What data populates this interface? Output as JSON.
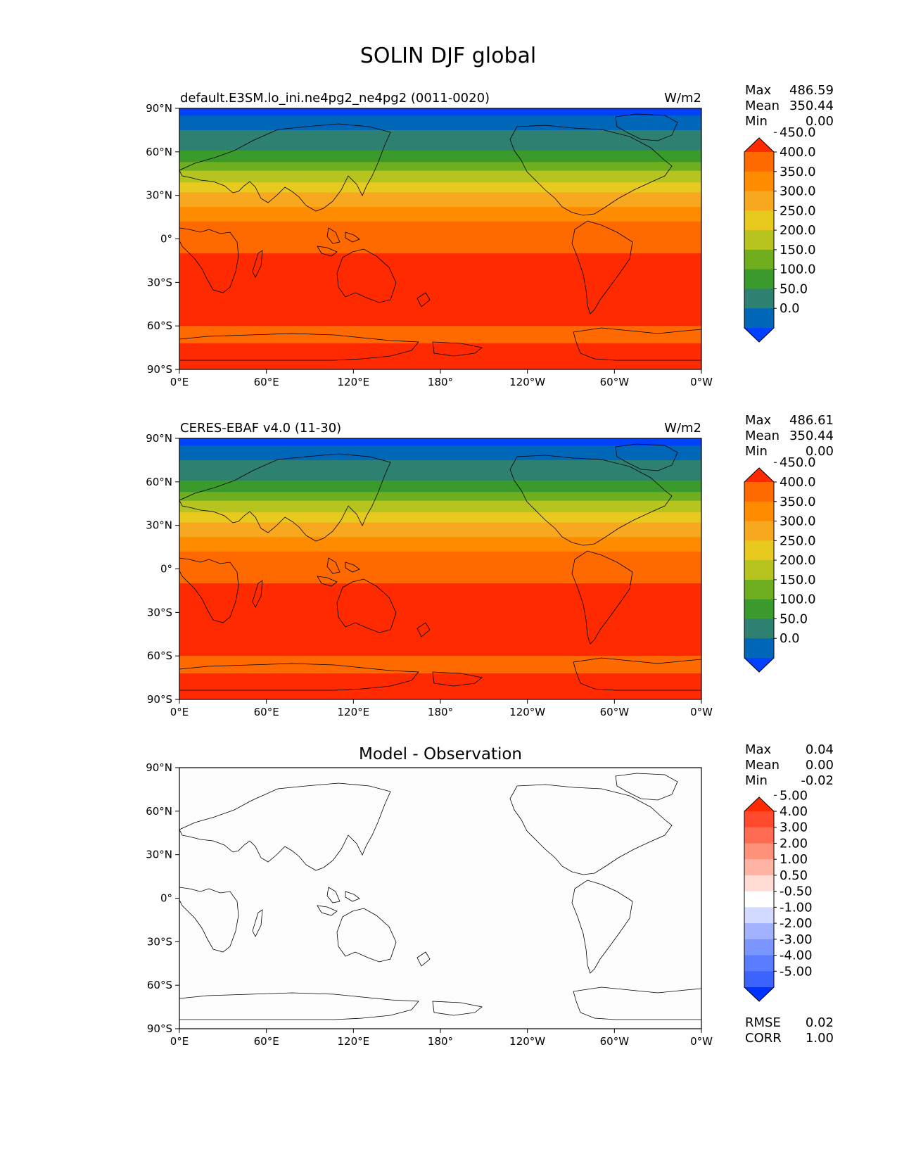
{
  "title": "SOLIN DJF global",
  "panels": [
    {
      "left_title": "default.E3SM.lo_ini.ne4pg2_ne4pg2 (0011-0020)",
      "right_title": "W/m2",
      "center_title": "",
      "stats": [
        {
          "label": "Max",
          "value": "486.59"
        },
        {
          "label": "Mean",
          "value": "350.44"
        },
        {
          "label": "Min",
          "value": "0.00"
        }
      ],
      "colorbar_ticks": [
        "0.0",
        "50.0",
        "100.0",
        "150.0",
        "200.0",
        "250.0",
        "300.0",
        "350.0",
        "400.0",
        "450.0"
      ]
    },
    {
      "left_title": "CERES-EBAF v4.0 (11-30)",
      "right_title": "W/m2",
      "center_title": "",
      "stats": [
        {
          "label": "Max",
          "value": "486.61"
        },
        {
          "label": "Mean",
          "value": "350.44"
        },
        {
          "label": "Min",
          "value": "0.00"
        }
      ],
      "colorbar_ticks": [
        "0.0",
        "50.0",
        "100.0",
        "150.0",
        "200.0",
        "250.0",
        "300.0",
        "350.0",
        "400.0",
        "450.0"
      ]
    },
    {
      "left_title": "",
      "right_title": "",
      "center_title": "Model - Observation",
      "stats": [
        {
          "label": "Max",
          "value": "0.04"
        },
        {
          "label": "Mean",
          "value": "0.00"
        },
        {
          "label": "Min",
          "value": "-0.02"
        }
      ],
      "colorbar_ticks": [
        "-5.00",
        "-4.00",
        "-3.00",
        "-2.00",
        "-1.00",
        "-0.50",
        "0.50",
        "1.00",
        "2.00",
        "3.00",
        "4.00",
        "5.00"
      ],
      "extra_stats": [
        {
          "label": "RMSE",
          "value": "0.02"
        },
        {
          "label": "CORR",
          "value": "1.00"
        }
      ]
    }
  ],
  "x_ticks": [
    "0°E",
    "60°E",
    "120°E",
    "180°",
    "120°W",
    "60°W",
    "0°W"
  ],
  "y_ticks": [
    "90°N",
    "60°N",
    "30°N",
    "0°",
    "30°S",
    "60°S",
    "90°S"
  ],
  "colors": {
    "sequential": [
      "#0040ff",
      "#0066b8",
      "#2e8070",
      "#3a9b2c",
      "#6faf1f",
      "#b7c41f",
      "#e8c91e",
      "#f8a81f",
      "#ff8c00",
      "#ff6a00",
      "#ff2a00"
    ],
    "diverging": [
      "#0033ff",
      "#3d63ff",
      "#5a7cff",
      "#7b96ff",
      "#a2b2ff",
      "#d2daff",
      "#ffffff",
      "#ffdcd4",
      "#ffb4a3",
      "#ff907a",
      "#ff6b52",
      "#ff4a2e",
      "#ff2a00"
    ]
  },
  "map_bands": {
    "lat_edges": [
      90,
      85,
      75,
      61,
      53,
      47,
      39,
      32,
      22,
      12,
      -10,
      -60,
      -72,
      -80,
      -90
    ],
    "level_index": [
      0,
      1,
      2,
      3,
      4,
      5,
      6,
      7,
      8,
      9,
      10,
      9,
      10,
      10
    ]
  }
}
